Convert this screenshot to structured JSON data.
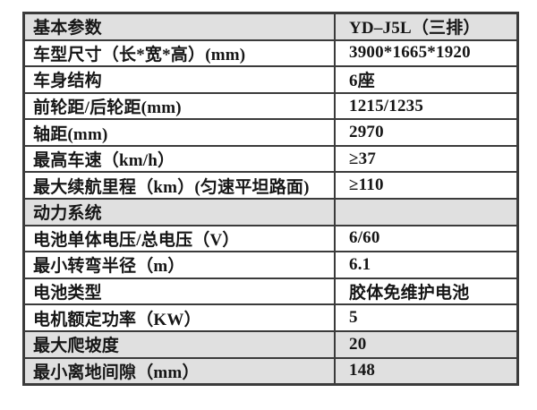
{
  "page": {
    "background_color": "#ffffff",
    "border_color": "#3b3b3b",
    "shaded_row_color": "#e0e0e0",
    "text_color": "#161616"
  },
  "table": {
    "columns": [
      "parameter",
      "value"
    ],
    "rows": [
      {
        "label": "基本参数",
        "value": "YD–J5L（三排）",
        "shaded": true
      },
      {
        "label": "车型尺寸（长*宽*高）(mm)",
        "value": "3900*1665*1920",
        "shaded": false
      },
      {
        "label": "车身结构",
        "value": "6座",
        "shaded": false
      },
      {
        "label": "前轮距/后轮距(mm)",
        "value": "1215/1235",
        "shaded": false
      },
      {
        "label": "轴距(mm)",
        "value": "2970",
        "shaded": false
      },
      {
        "label": "最高车速（km/h）",
        "value": "≥37",
        "shaded": false
      },
      {
        "label": "最大续航里程（km）(匀速平坦路面)",
        "value": "≥110",
        "shaded": false
      },
      {
        "label": "动力系统",
        "value": "",
        "shaded": true
      },
      {
        "label": "电池单体电压/总电压（V）",
        "value": "6/60",
        "shaded": false
      },
      {
        "label": "最小转弯半径（m）",
        "value": "6.1",
        "shaded": false
      },
      {
        "label": "电池类型",
        "value": "胶体免维护电池",
        "shaded": false
      },
      {
        "label": "电机额定功率（KW）",
        "value": "5",
        "shaded": false
      },
      {
        "label": "最大爬坡度",
        "value": "20",
        "shaded": true
      },
      {
        "label": "最小离地间隙（mm）",
        "value": "148",
        "shaded": true
      }
    ]
  }
}
